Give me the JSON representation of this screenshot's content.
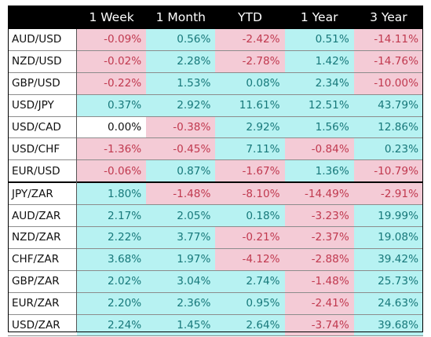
{
  "chart_data": {
    "type": "table",
    "columns": [
      "",
      "1 Week",
      "1 Month",
      "YTD",
      "1 Year",
      "3 Year"
    ],
    "rows": [
      {
        "pair": "AUD/USD",
        "values": [
          "-0.09%",
          "0.56%",
          "-2.42%",
          "0.51%",
          "-14.11%"
        ]
      },
      {
        "pair": "NZD/USD",
        "values": [
          "-0.02%",
          "2.28%",
          "-2.78%",
          "1.42%",
          "-14.76%"
        ]
      },
      {
        "pair": "GBP/USD",
        "values": [
          "-0.22%",
          "1.53%",
          "0.08%",
          "2.34%",
          "-10.00%"
        ]
      },
      {
        "pair": "USD/JPY",
        "values": [
          "0.37%",
          "2.92%",
          "11.61%",
          "12.51%",
          "43.79%"
        ]
      },
      {
        "pair": "USD/CAD",
        "values": [
          "0.00%",
          "-0.38%",
          "2.92%",
          "1.56%",
          "12.86%"
        ]
      },
      {
        "pair": "USD/CHF",
        "values": [
          "-1.36%",
          "-0.45%",
          "7.11%",
          "-0.84%",
          "0.23%"
        ]
      },
      {
        "pair": "EUR/USD",
        "values": [
          "-0.06%",
          "0.87%",
          "-1.67%",
          "1.36%",
          "-10.79%"
        ]
      },
      {
        "pair": "JPY/ZAR",
        "values": [
          "1.80%",
          "-1.48%",
          "-8.10%",
          "-14.49%",
          "-2.91%"
        ]
      },
      {
        "pair": "AUD/ZAR",
        "values": [
          "2.17%",
          "2.05%",
          "0.18%",
          "-3.23%",
          "19.99%"
        ]
      },
      {
        "pair": "NZD/ZAR",
        "values": [
          "2.22%",
          "3.77%",
          "-0.21%",
          "-2.37%",
          "19.08%"
        ]
      },
      {
        "pair": "CHF/ZAR",
        "values": [
          "3.68%",
          "1.97%",
          "-4.12%",
          "-2.88%",
          "39.42%"
        ]
      },
      {
        "pair": "GBP/ZAR",
        "values": [
          "2.02%",
          "3.04%",
          "2.74%",
          "-1.48%",
          "25.73%"
        ]
      },
      {
        "pair": "EUR/ZAR",
        "values": [
          "2.20%",
          "2.36%",
          "0.95%",
          "-2.41%",
          "24.63%"
        ]
      },
      {
        "pair": "USD/ZAR",
        "values": [
          "2.24%",
          "1.45%",
          "2.64%",
          "-3.74%",
          "39.68%"
        ]
      }
    ],
    "group_break_after_row": 7
  },
  "colors": {
    "header_bg": "#000000",
    "header_text": "#ffffff",
    "positive_bg": "#b7f2f2",
    "positive_text": "#17787a",
    "negative_bg": "#f4cbd6",
    "negative_text": "#c0394f"
  }
}
